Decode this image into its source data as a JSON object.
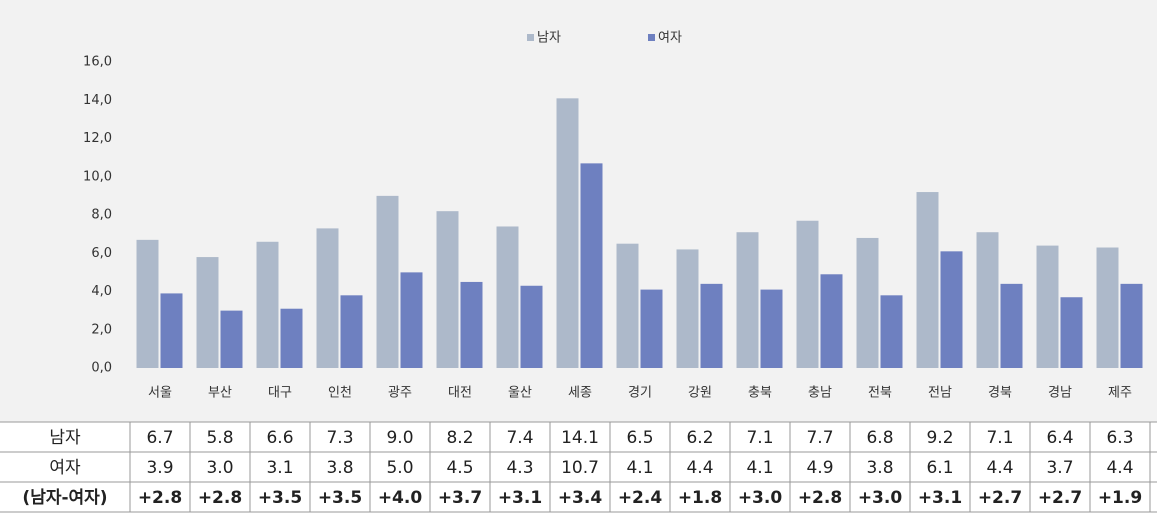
{
  "chart_data": {
    "type": "bar",
    "categories": [
      "서울",
      "부산",
      "대구",
      "인천",
      "광주",
      "대전",
      "울산",
      "세종",
      "경기",
      "강원",
      "충북",
      "충남",
      "전북",
      "전남",
      "경북",
      "경남",
      "제주"
    ],
    "series": [
      {
        "name": "남자",
        "color": "#adb9ca",
        "values": [
          6.7,
          5.8,
          6.6,
          7.3,
          9.0,
          8.2,
          7.4,
          14.1,
          6.5,
          6.2,
          7.1,
          7.7,
          6.8,
          9.2,
          7.1,
          6.4,
          6.3
        ],
        "value_labels": [
          "6.7",
          "5.8",
          "6.6",
          "7.3",
          "9.0",
          "8.2",
          "7.4",
          "14.1",
          "6.5",
          "6.2",
          "7.1",
          "7.7",
          "6.8",
          "9.2",
          "7.1",
          "6.4",
          "6.3"
        ]
      },
      {
        "name": "여자",
        "color": "#6e80c0",
        "values": [
          3.9,
          3.0,
          3.1,
          3.8,
          5.0,
          4.5,
          4.3,
          10.7,
          4.1,
          4.4,
          4.1,
          4.9,
          3.8,
          6.1,
          4.4,
          3.7,
          4.4
        ],
        "value_labels": [
          "3.9",
          "3.0",
          "3.1",
          "3.8",
          "5.0",
          "4.5",
          "4.3",
          "10.7",
          "4.1",
          "4.4",
          "4.1",
          "4.9",
          "3.8",
          "6.1",
          "4.4",
          "3.7",
          "4.4"
        ]
      }
    ],
    "ylim": [
      0,
      16
    ],
    "yticks": [
      {
        "value": 0,
        "label": "0,0"
      },
      {
        "value": 2,
        "label": "2,0"
      },
      {
        "value": 4,
        "label": "4,0"
      },
      {
        "value": 6,
        "label": "6,0"
      },
      {
        "value": 8,
        "label": "8,0"
      },
      {
        "value": 10,
        "label": "10,0"
      },
      {
        "value": 12,
        "label": "12,0"
      },
      {
        "value": 14,
        "label": "14,0"
      },
      {
        "value": 16,
        "label": "16,0"
      }
    ],
    "legend": "top",
    "table": {
      "difference_header": "(남자-여자)",
      "differences": [
        "+2.8",
        "+2.8",
        "+3.5",
        "+3.5",
        "+4.0",
        "+3.7",
        "+3.1",
        "+3.4",
        "+2.4",
        "+1.8",
        "+3.0",
        "+2.8",
        "+3.0",
        "+3.1",
        "+2.7",
        "+2.7",
        "+1.9"
      ]
    }
  }
}
